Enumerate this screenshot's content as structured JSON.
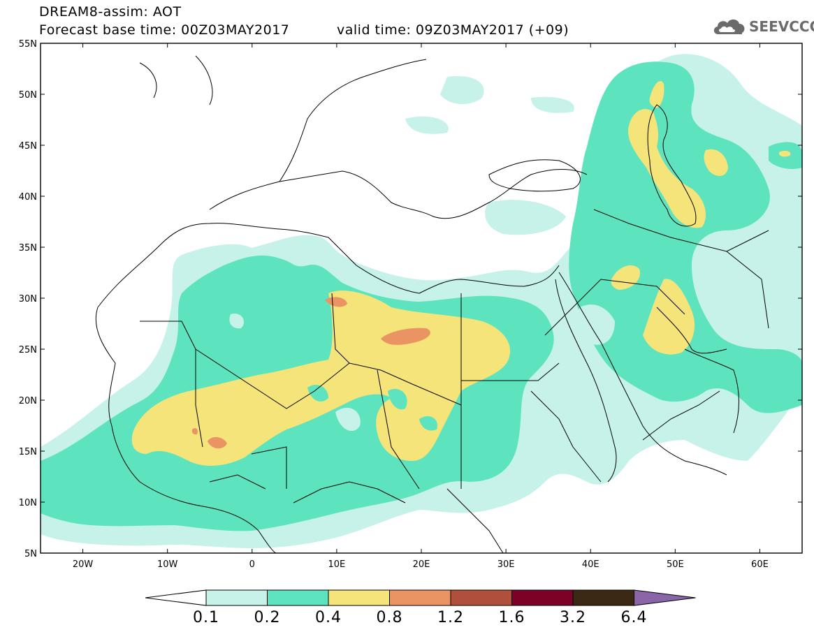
{
  "header": {
    "line1": "DREAM8-assim: AOT",
    "line2": "Forecast base time: 00Z03MAY2017",
    "valid": "valid time: 09Z03MAY2017 (+09)"
  },
  "logo": {
    "text": "SEEVCCC",
    "icon": "cloud-icon"
  },
  "axes": {
    "lat_labels": [
      "55N",
      "50N",
      "45N",
      "40N",
      "35N",
      "30N",
      "25N",
      "20N",
      "15N",
      "10N",
      "5N"
    ],
    "lon_labels": [
      "20W",
      "10W",
      "0",
      "10E",
      "20E",
      "30E",
      "40E",
      "50E",
      "60E"
    ],
    "lat_range": [
      5,
      55
    ],
    "lon_range": [
      -25,
      65
    ]
  },
  "colorbar": {
    "labels": [
      "0.1",
      "0.2",
      "0.4",
      "0.8",
      "1.2",
      "1.6",
      "3.2",
      "6.4"
    ],
    "colors": [
      "#c6f2ea",
      "#5ee3bf",
      "#f5e479",
      "#ea9464",
      "#b04f3b",
      "#7d0027",
      "#3c2914",
      "#8a66a8"
    ]
  }
}
